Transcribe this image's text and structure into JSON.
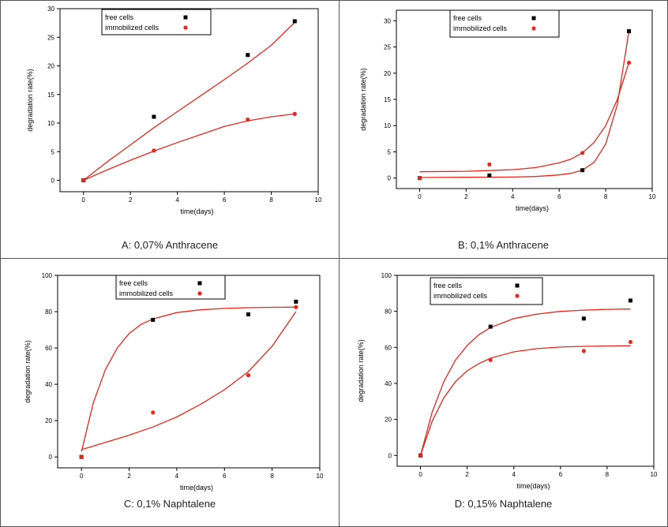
{
  "colors": {
    "free": "#000000",
    "immobilized": "#e8261b",
    "fit": "#e8261b",
    "panel_border": "#555555"
  },
  "chart_data": [
    {
      "type": "scatter",
      "caption": "A: 0,07% Anthracene",
      "xlabel": "time(days)",
      "ylabel": "degradation rate(%)",
      "xlim": [
        -1,
        10
      ],
      "ylim": [
        -2,
        30
      ],
      "xticks": [
        0,
        2,
        4,
        6,
        8,
        10
      ],
      "xtick_labels": [
        "0",
        "2",
        "4",
        "6",
        "8",
        "10"
      ],
      "yticks": [
        0,
        5,
        10,
        15,
        20,
        25,
        30
      ],
      "ytick_labels": [
        "0",
        "5",
        "10",
        "15",
        "20",
        "25",
        "30"
      ],
      "legend": [
        "free cells",
        "immobilized cells"
      ],
      "legend_position": "top-center",
      "series": [
        {
          "name": "free cells",
          "marker": "square",
          "x": [
            0,
            3,
            7,
            9
          ],
          "y": [
            0,
            11.1,
            21.9,
            27.8
          ],
          "fit": [
            [
              0,
              0
            ],
            [
              1,
              3.2
            ],
            [
              2,
              6.2
            ],
            [
              3,
              9.2
            ],
            [
              4,
              12.0
            ],
            [
              5,
              14.8
            ],
            [
              6,
              17.6
            ],
            [
              7,
              20.5
            ],
            [
              8,
              23.6
            ],
            [
              9,
              27.6
            ]
          ]
        },
        {
          "name": "immobilized cells",
          "marker": "circle",
          "x": [
            0,
            3,
            7,
            9
          ],
          "y": [
            0,
            5.2,
            10.6,
            11.6
          ],
          "fit": [
            [
              0,
              0
            ],
            [
              1,
              1.8
            ],
            [
              2,
              3.5
            ],
            [
              3,
              5.1
            ],
            [
              4,
              6.6
            ],
            [
              5,
              8.0
            ],
            [
              6,
              9.4
            ],
            [
              7,
              10.4
            ],
            [
              8,
              11.1
            ],
            [
              9,
              11.6
            ]
          ]
        }
      ]
    },
    {
      "type": "scatter",
      "caption": "B: 0,1% Anthracene",
      "xlabel": "time(days)",
      "ylabel": "degradation rate(%)",
      "xlim": [
        -1,
        10
      ],
      "ylim": [
        -2,
        32
      ],
      "xticks": [
        0,
        2,
        4,
        6,
        8,
        10
      ],
      "xtick_labels": [
        "0",
        "2",
        "4",
        "6",
        "8",
        "10"
      ],
      "yticks": [
        0,
        5,
        10,
        15,
        20,
        25,
        30
      ],
      "ytick_labels": [
        "0",
        "5",
        "10",
        "15",
        "20",
        "25",
        "30"
      ],
      "legend": [
        "free cells",
        "immobilized cells"
      ],
      "legend_position": "top-right",
      "series": [
        {
          "name": "free cells",
          "marker": "square",
          "x": [
            0,
            3,
            7,
            9
          ],
          "y": [
            0,
            0.5,
            1.5,
            28
          ],
          "fit": [
            [
              0,
              0.1
            ],
            [
              2,
              0.15
            ],
            [
              4,
              0.2
            ],
            [
              5,
              0.3
            ],
            [
              6,
              0.6
            ],
            [
              6.5,
              0.9
            ],
            [
              7,
              1.5
            ],
            [
              7.5,
              3.0
            ],
            [
              8,
              6.5
            ],
            [
              8.5,
              14.0
            ],
            [
              9,
              28.0
            ]
          ]
        },
        {
          "name": "immobilized cells",
          "marker": "circle",
          "x": [
            0,
            3,
            7,
            9
          ],
          "y": [
            0,
            2.6,
            4.8,
            22
          ],
          "fit": [
            [
              0,
              1.2
            ],
            [
              2,
              1.3
            ],
            [
              4,
              1.6
            ],
            [
              5,
              2.0
            ],
            [
              6,
              2.9
            ],
            [
              6.5,
              3.6
            ],
            [
              7,
              4.8
            ],
            [
              7.5,
              6.8
            ],
            [
              8,
              10.0
            ],
            [
              8.5,
              15.0
            ],
            [
              9,
              22.0
            ]
          ]
        }
      ]
    },
    {
      "type": "scatter",
      "caption": "C: 0,1% Naphtalene",
      "xlabel": "time(days)",
      "ylabel": "degradation rate(%)",
      "xlim": [
        -1,
        10
      ],
      "ylim": [
        -6,
        100
      ],
      "xticks": [
        0,
        2,
        4,
        6,
        8,
        10
      ],
      "xtick_labels": [
        "0",
        "2",
        "4",
        "6",
        "8",
        "10"
      ],
      "yticks": [
        0,
        20,
        40,
        60,
        80,
        100
      ],
      "ytick_labels": [
        "0",
        "20",
        "40",
        "60",
        "80",
        "100"
      ],
      "legend": [
        "free cells",
        "immobilized cells"
      ],
      "legend_position": "top-center",
      "series": [
        {
          "name": "free cells",
          "marker": "square",
          "x": [
            0,
            3,
            7,
            9
          ],
          "y": [
            0,
            75.5,
            78.5,
            85.5
          ],
          "fit": [
            [
              0,
              3
            ],
            [
              0.5,
              30
            ],
            [
              1,
              48
            ],
            [
              1.5,
              60
            ],
            [
              2,
              68
            ],
            [
              2.5,
              73
            ],
            [
              3,
              76
            ],
            [
              4,
              79.5
            ],
            [
              5,
              81
            ],
            [
              6,
              81.8
            ],
            [
              7,
              82.2
            ],
            [
              8,
              82.4
            ],
            [
              9,
              82.5
            ]
          ]
        },
        {
          "name": "immobilized cells",
          "marker": "circle",
          "x": [
            0,
            3,
            7,
            9
          ],
          "y": [
            0,
            24.5,
            45,
            82.5
          ],
          "fit": [
            [
              0,
              4
            ],
            [
              1,
              8
            ],
            [
              2,
              12
            ],
            [
              3,
              16.5
            ],
            [
              4,
              22
            ],
            [
              5,
              29
            ],
            [
              6,
              37
            ],
            [
              7,
              47
            ],
            [
              8,
              61
            ],
            [
              9,
              80
            ]
          ]
        }
      ]
    },
    {
      "type": "scatter",
      "caption": "D: 0,15% Naphtalene",
      "xlabel": "time(days)",
      "ylabel": "degradation rate(%)",
      "xlim": [
        -1,
        10
      ],
      "ylim": [
        -6,
        100
      ],
      "xticks": [
        0,
        2,
        4,
        6,
        8,
        10
      ],
      "xtick_labels": [
        "0",
        "2",
        "4",
        "6",
        "8",
        "10"
      ],
      "yticks": [
        0,
        20,
        40,
        60,
        80,
        100
      ],
      "ytick_labels": [
        "0",
        "20",
        "40",
        "60",
        "80",
        "100"
      ],
      "legend": [
        "free cells",
        "immobilized cells"
      ],
      "legend_position": "top-left",
      "series": [
        {
          "name": "free cells",
          "marker": "square",
          "x": [
            0,
            3,
            7,
            9
          ],
          "y": [
            0,
            71.5,
            76,
            86
          ],
          "fit": [
            [
              0,
              0
            ],
            [
              0.5,
              24
            ],
            [
              1,
              41
            ],
            [
              1.5,
              53
            ],
            [
              2,
              61
            ],
            [
              2.5,
              67
            ],
            [
              3,
              71
            ],
            [
              4,
              76
            ],
            [
              5,
              78.5
            ],
            [
              6,
              80
            ],
            [
              7,
              80.7
            ],
            [
              8,
              81.1
            ],
            [
              9,
              81.3
            ]
          ]
        },
        {
          "name": "immobilized cells",
          "marker": "circle",
          "x": [
            0,
            3,
            7,
            9
          ],
          "y": [
            0,
            53,
            58,
            63
          ],
          "fit": [
            [
              0,
              0
            ],
            [
              0.5,
              19
            ],
            [
              1,
              32
            ],
            [
              1.5,
              41
            ],
            [
              2,
              47
            ],
            [
              2.5,
              51
            ],
            [
              3,
              54
            ],
            [
              4,
              57.5
            ],
            [
              5,
              59.3
            ],
            [
              6,
              60.2
            ],
            [
              7,
              60.6
            ],
            [
              8,
              60.8
            ],
            [
              9,
              60.9
            ]
          ]
        }
      ]
    }
  ]
}
